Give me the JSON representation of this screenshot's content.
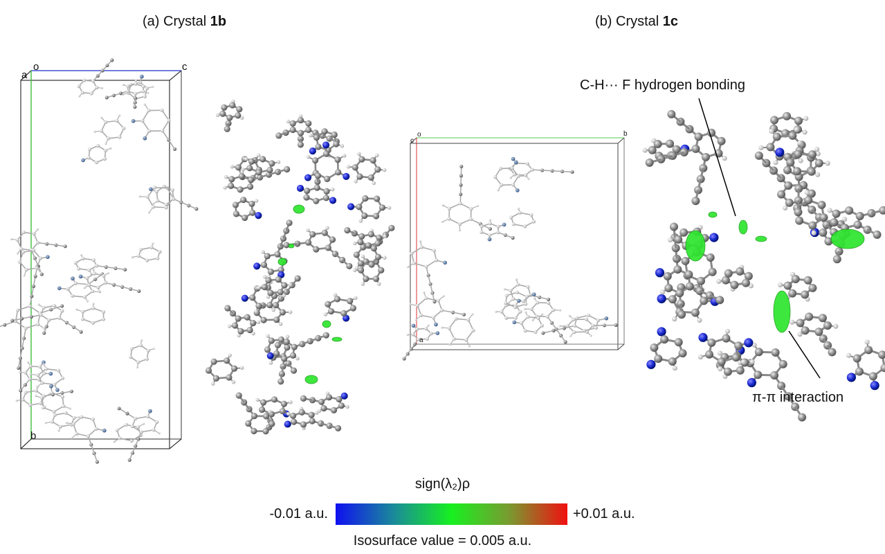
{
  "panels": [
    {
      "label": "(a) Crystal",
      "compound": "1b",
      "axes": [
        "a",
        "o",
        "c",
        "b"
      ]
    },
    {
      "label": "(b) Crystal",
      "compound": "1c",
      "axes": [
        "o",
        "c",
        "b",
        "a"
      ],
      "annotations": [
        "C-H··· F hydrogen bonding",
        "π-π interaction"
      ]
    }
  ],
  "colorbar": {
    "title": "sign(λ₂)ρ",
    "min_label": "-0.01 a.u.",
    "max_label": "+0.01 a.u.",
    "caption": "Isosurface value = 0.005 a.u."
  }
}
